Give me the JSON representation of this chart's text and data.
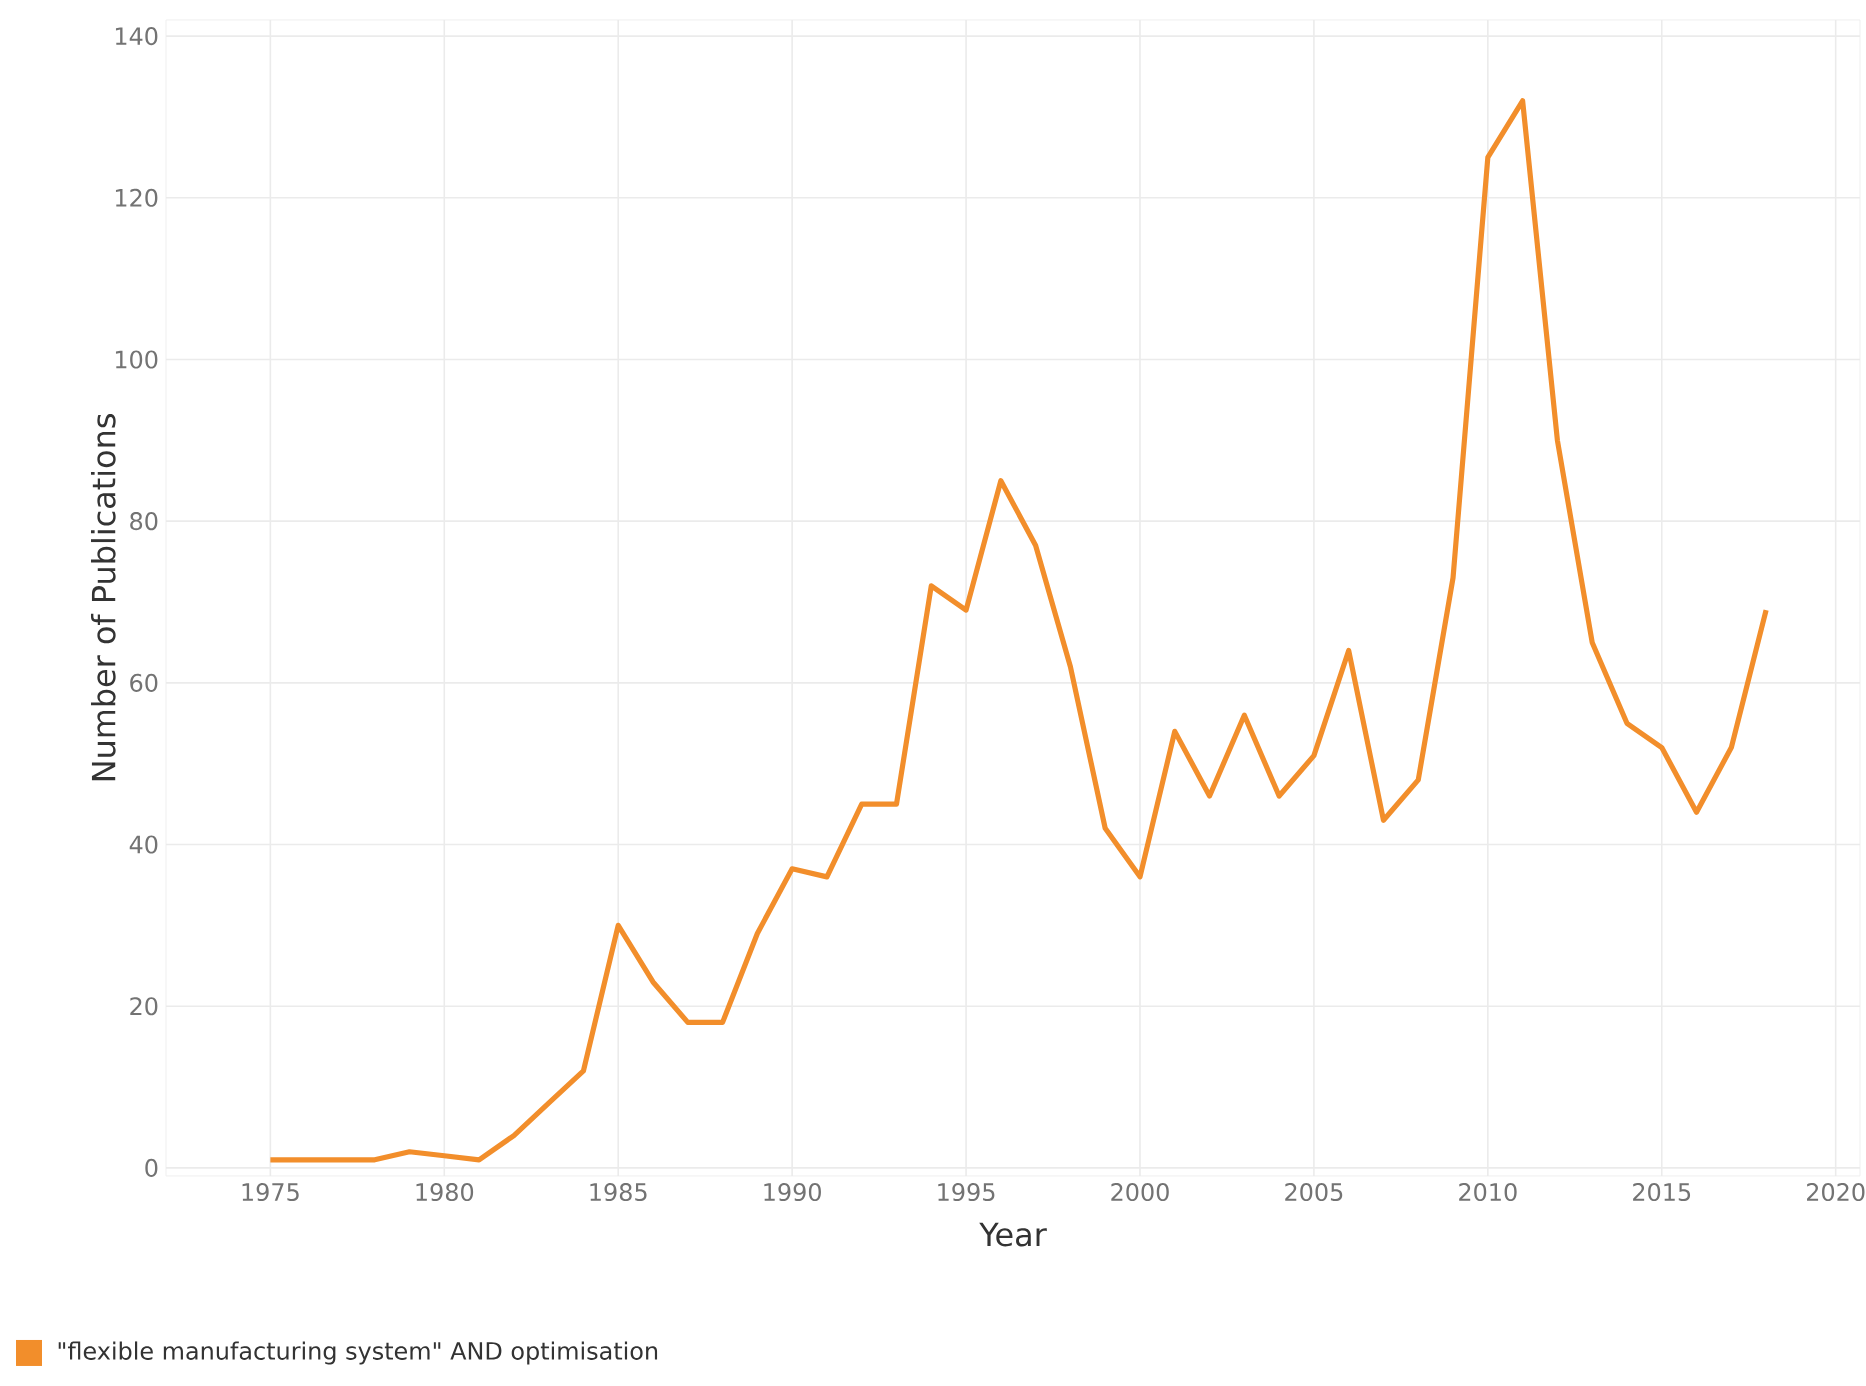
{
  "chart_data": {
    "type": "line",
    "xlabel": "Year",
    "ylabel": "Number of Publications",
    "x": [
      1975,
      1976,
      1977,
      1978,
      1979,
      1980,
      1981,
      1982,
      1983,
      1984,
      1985,
      1986,
      1987,
      1988,
      1989,
      1990,
      1991,
      1992,
      1993,
      1994,
      1995,
      1996,
      1997,
      1998,
      1999,
      2000,
      2001,
      2002,
      2003,
      2004,
      2005,
      2006,
      2007,
      2008,
      2009,
      2010,
      2011,
      2012,
      2013,
      2014,
      2015,
      2016,
      2017,
      2018
    ],
    "series": [
      {
        "name": "\"flexible manufacturing system\" AND optimisation",
        "color": "#f28e2b",
        "values": [
          1,
          1,
          1,
          1,
          2,
          1.5,
          1,
          4,
          8,
          12,
          30,
          23,
          18,
          18,
          29,
          37,
          36,
          45,
          45,
          72,
          69,
          85,
          77,
          62,
          42,
          36,
          54,
          46,
          56,
          46,
          51,
          64,
          43,
          48,
          73,
          125,
          132,
          90,
          65,
          55,
          52,
          44,
          52,
          69
        ]
      }
    ],
    "xlim": [
      1972,
      2020.7
    ],
    "ylim": [
      -1,
      142
    ],
    "xticks": [
      1975,
      1980,
      1985,
      1990,
      1995,
      2000,
      2005,
      2010,
      2015,
      2020
    ],
    "yticks": [
      0,
      20,
      40,
      60,
      80,
      100,
      120,
      140
    ],
    "grid": true,
    "legend": "bottom left",
    "marker": "none",
    "line_style": "solid"
  }
}
